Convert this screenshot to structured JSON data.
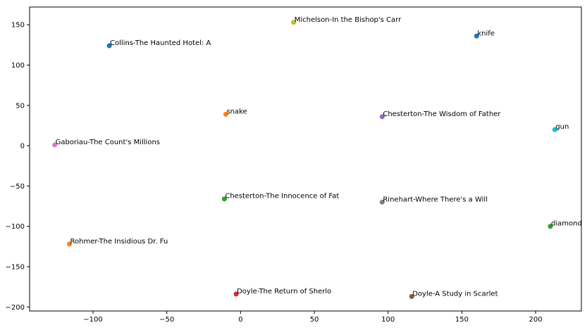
{
  "chart_data": {
    "type": "scatter",
    "xlim": [
      -143,
      231
    ],
    "ylim": [
      -205,
      172
    ],
    "x_ticks": [
      -100,
      -50,
      0,
      50,
      100,
      150,
      200
    ],
    "y_ticks": [
      -200,
      -150,
      -100,
      -50,
      0,
      50,
      100,
      150
    ],
    "x_tick_labels": [
      "−100",
      "−50",
      "0",
      "50",
      "100",
      "150",
      "200"
    ],
    "y_tick_labels": [
      "−200",
      "−150",
      "−100",
      "−50",
      "0",
      "50",
      "100",
      "150"
    ],
    "grid": false,
    "points": [
      {
        "label": "Michelson-In the Bishop's Carr",
        "x": 36,
        "y": 153,
        "color": "#bcbd22"
      },
      {
        "label": "knife",
        "x": 160,
        "y": 136,
        "color": "#1f77b4"
      },
      {
        "label": "Collins-The Haunted Hotel: A",
        "x": -89,
        "y": 124,
        "color": "#1f77b4"
      },
      {
        "label": "snake",
        "x": -10,
        "y": 39,
        "color": "#ff7f0e"
      },
      {
        "label": "Chesterton-The Wisdom of Father",
        "x": 96,
        "y": 36,
        "color": "#9467bd"
      },
      {
        "label": "gun",
        "x": 213,
        "y": 20,
        "color": "#17becf"
      },
      {
        "label": "Gaboriau-The Count's Millions",
        "x": -126,
        "y": 1,
        "color": "#e377c2"
      },
      {
        "label": "Chesterton-The Innocence of Fat",
        "x": -11,
        "y": -66,
        "color": "#2ca02c"
      },
      {
        "label": "Rinehart-Where There's a Will",
        "x": 96,
        "y": -70,
        "color": "#7f7f7f"
      },
      {
        "label": "diamond",
        "x": 210,
        "y": -100,
        "color": "#2ca02c"
      },
      {
        "label": "Rohmer-The Insidious Dr. Fu",
        "x": -116,
        "y": -122,
        "color": "#ff7f0e"
      },
      {
        "label": "Doyle-The Return of Sherlo",
        "x": -3,
        "y": -184,
        "color": "#d62728"
      },
      {
        "label": "Doyle-A Study in Scarlet",
        "x": 116,
        "y": -187,
        "color": "#8c564b"
      }
    ]
  }
}
